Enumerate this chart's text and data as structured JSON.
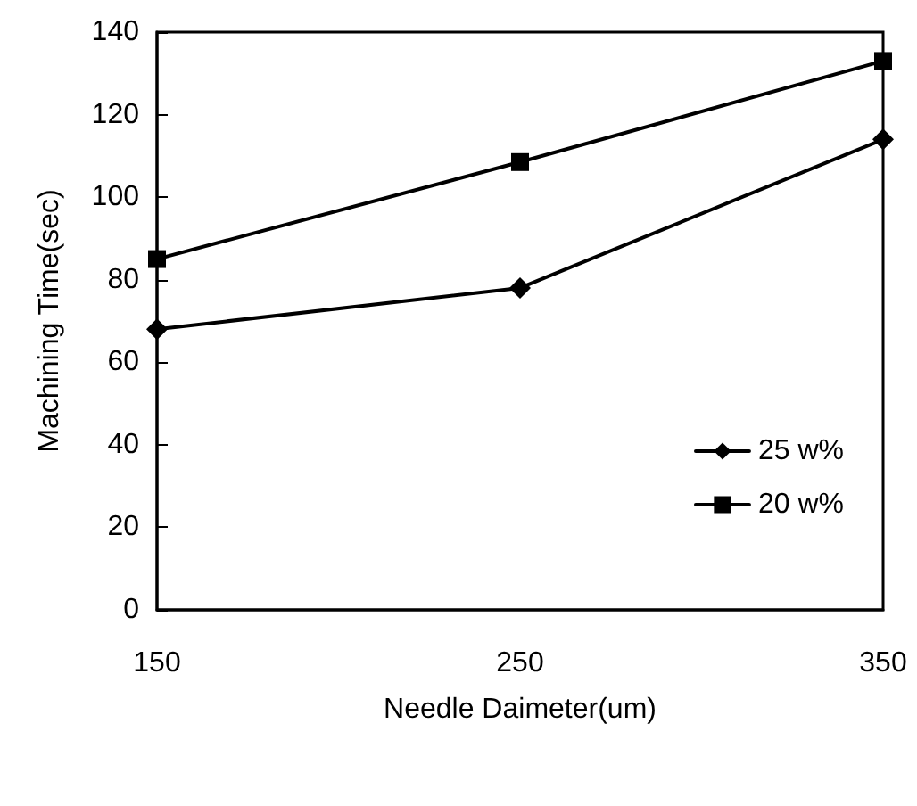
{
  "chart_data": {
    "type": "line",
    "xlabel": "Needle Daimeter(um)",
    "ylabel": "Machining Time(sec)",
    "x": [
      150,
      250,
      350
    ],
    "xlim": [
      150,
      350
    ],
    "xticks": [
      150,
      250,
      350
    ],
    "ylim": [
      0,
      140
    ],
    "yticks": [
      0,
      20,
      40,
      60,
      80,
      100,
      120,
      140
    ],
    "series": [
      {
        "name": "25 w%",
        "color": "#000000",
        "marker": "diamond",
        "values": [
          68,
          78,
          114
        ]
      },
      {
        "name": "20 w%",
        "color": "#000000",
        "marker": "square",
        "values": [
          85,
          108.5,
          133
        ]
      }
    ],
    "legend": "right",
    "grid": false,
    "line_style": "solid"
  }
}
